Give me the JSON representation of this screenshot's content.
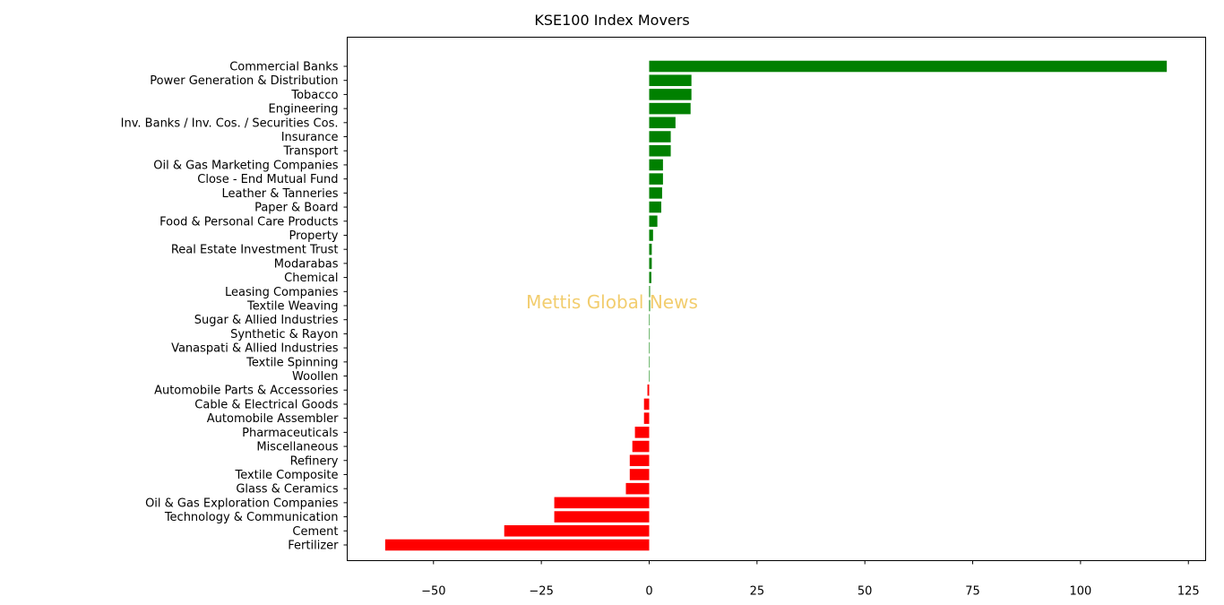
{
  "chart_data": {
    "type": "bar",
    "orientation": "horizontal",
    "title": "KSE100 Index Movers",
    "watermark": "Mettis Global News",
    "xlim": [
      -70,
      129
    ],
    "x_ticks": [
      -50,
      -25,
      0,
      25,
      50,
      75,
      100,
      125
    ],
    "x_tick_labels": [
      "−50",
      "−25",
      "0",
      "25",
      "50",
      "75",
      "100",
      "125"
    ],
    "grid": false,
    "colors": {
      "positive": "#008000",
      "negative": "#ff0000"
    },
    "categories": [
      "Commercial Banks",
      "Power Generation & Distribution",
      "Tobacco",
      "Engineering",
      "Inv. Banks / Inv. Cos. / Securities Cos.",
      "Insurance",
      "Transport",
      "Oil & Gas Marketing Companies",
      "Close - End Mutual Fund",
      "Leather & Tanneries",
      "Paper & Board",
      "Food & Personal Care Products",
      "Property",
      "Real Estate Investment Trust",
      "Modarabas",
      "Chemical",
      "Leasing Companies",
      "Textile Weaving",
      "Sugar & Allied Industries",
      "Synthetic & Rayon",
      "Vanaspati & Allied Industries",
      "Textile Spinning",
      "Woollen",
      "Automobile Parts & Accessories",
      "Cable & Electrical Goods",
      "Automobile Assembler",
      "Pharmaceuticals",
      "Miscellaneous",
      "Refinery",
      "Textile Composite",
      "Glass & Ceramics",
      "Oil & Gas Exploration Companies",
      "Technology & Communication",
      "Cement",
      "Fertilizer"
    ],
    "values": [
      120,
      9.8,
      9.8,
      9.6,
      6.1,
      5.0,
      5.0,
      3.2,
      3.2,
      3.0,
      2.8,
      1.9,
      0.9,
      0.6,
      0.6,
      0.5,
      0.2,
      0.2,
      0.05,
      0.03,
      0.02,
      0.01,
      0.01,
      -0.4,
      -1.2,
      -1.2,
      -3.3,
      -3.9,
      -4.5,
      -4.5,
      -5.4,
      -22,
      -22,
      -33.6,
      -61.2
    ]
  }
}
